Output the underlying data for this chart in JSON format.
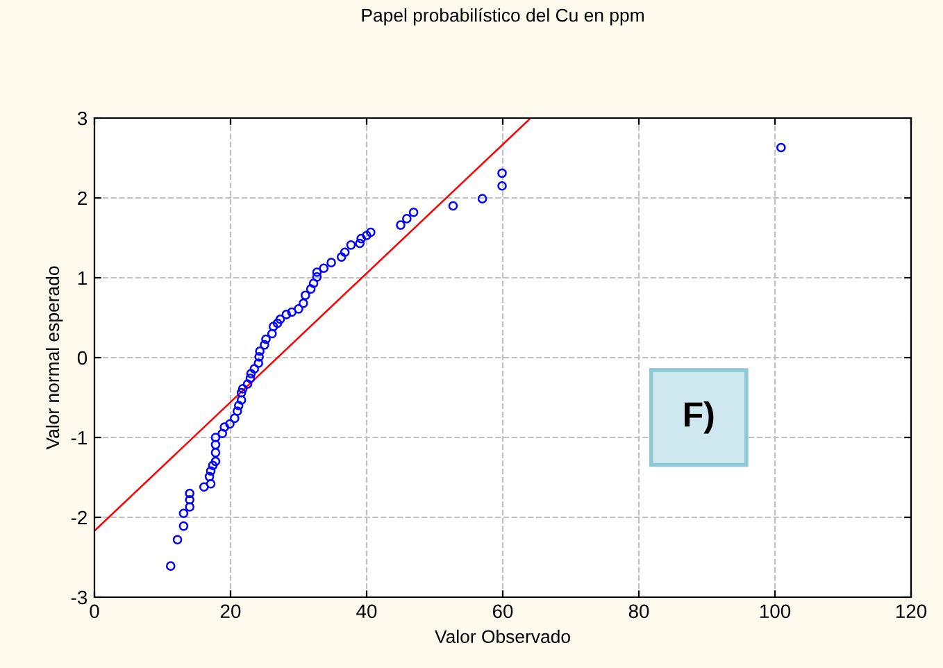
{
  "chart_data": {
    "type": "scatter",
    "title": "Papel probabilístico del Cu en ppm",
    "xlabel": "Valor Observado",
    "ylabel": "Valor normal esperado",
    "xlim": [
      0,
      120
    ],
    "xticks": [
      0,
      20,
      40,
      60,
      80,
      100,
      120
    ],
    "ylim": [
      -3,
      3
    ],
    "yticks": [
      -3,
      -2,
      -1,
      0,
      1,
      2,
      3
    ],
    "grid": true,
    "annotations": [
      "F)"
    ],
    "series": [
      {
        "marker": "circle",
        "color": "#0000ff",
        "x": [
          11.2,
          12.2,
          13.1,
          13.1,
          14.0,
          14.0,
          14.0,
          16.1,
          17.1,
          16.9,
          17.1,
          17.4,
          17.8,
          17.8,
          17.8,
          17.8,
          18.8,
          19.1,
          19.9,
          20.6,
          21.0,
          21.2,
          21.6,
          21.6,
          21.8,
          22.5,
          22.9,
          23.0,
          23.5,
          24.1,
          24.2,
          24.3,
          25.0,
          25.2,
          26.1,
          26.3,
          26.9,
          27.3,
          28.2,
          29.0,
          30.0,
          30.7,
          31.0,
          31.8,
          32.2,
          32.7,
          32.7,
          33.7,
          34.8,
          36.3,
          36.8,
          37.7,
          39.0,
          39.2,
          40.0,
          40.6,
          45.0,
          45.9,
          46.9,
          52.7,
          57.0,
          59.9,
          59.9,
          100.9
        ],
        "values": [
          -2.61,
          -2.28,
          -2.11,
          -1.95,
          -1.87,
          -1.78,
          -1.7,
          -1.62,
          -1.58,
          -1.49,
          -1.42,
          -1.35,
          -1.3,
          -1.19,
          -1.09,
          -1.0,
          -0.95,
          -0.87,
          -0.83,
          -0.76,
          -0.67,
          -0.6,
          -0.53,
          -0.44,
          -0.39,
          -0.33,
          -0.26,
          -0.2,
          -0.14,
          -0.07,
          0.01,
          0.08,
          0.16,
          0.23,
          0.3,
          0.39,
          0.43,
          0.48,
          0.54,
          0.57,
          0.61,
          0.68,
          0.78,
          0.86,
          0.93,
          1.01,
          1.07,
          1.12,
          1.19,
          1.26,
          1.32,
          1.41,
          1.43,
          1.49,
          1.53,
          1.57,
          1.66,
          1.74,
          1.82,
          1.9,
          1.99,
          2.15,
          2.31,
          2.63
        ]
      },
      {
        "type": "line",
        "marker": "none",
        "color": "#ff0000",
        "x": [
          0,
          64.1
        ],
        "values": [
          -2.17,
          3
        ]
      }
    ]
  }
}
